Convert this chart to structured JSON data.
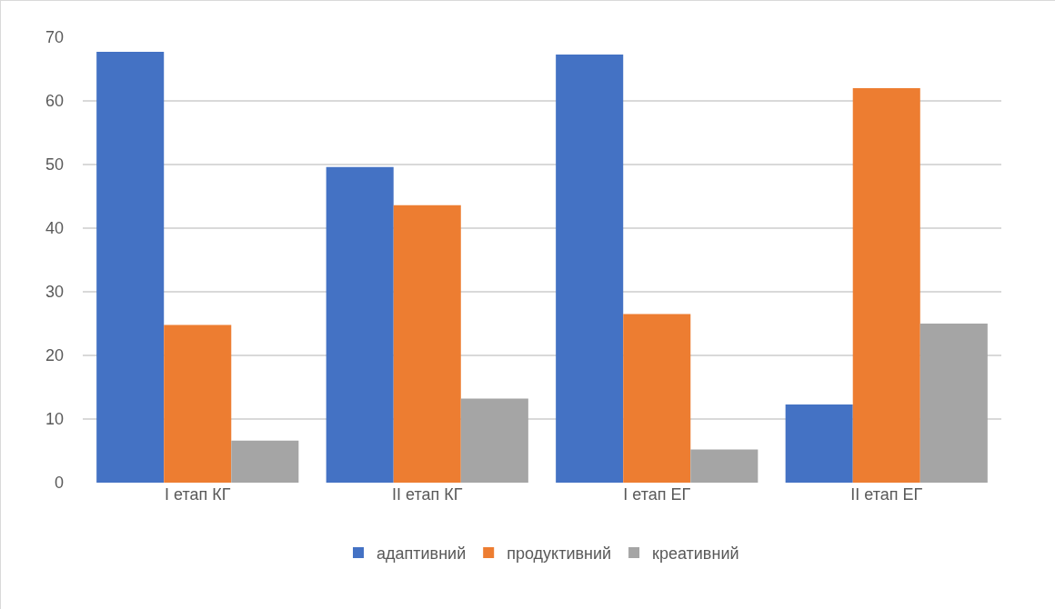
{
  "chart_data": {
    "type": "bar",
    "categories": [
      "I етап КГ",
      "II етап КГ",
      "I етап ЕГ",
      "II етап ЕГ"
    ],
    "series": [
      {
        "name": "адаптивний",
        "color": "#4472c4",
        "values": [
          67.7,
          49.6,
          67.3,
          12.3
        ]
      },
      {
        "name": "продуктивний",
        "color": "#ed7d31",
        "values": [
          24.8,
          43.6,
          26.5,
          62
        ]
      },
      {
        "name": "креативний",
        "color": "#a5a5a5",
        "values": [
          6.6,
          13.2,
          5.2,
          25
        ]
      }
    ],
    "ylim": [
      0,
      70
    ],
    "yticks": [
      0,
      10,
      20,
      30,
      40,
      50,
      60,
      70
    ],
    "grid": "y",
    "legend": "bottom"
  }
}
